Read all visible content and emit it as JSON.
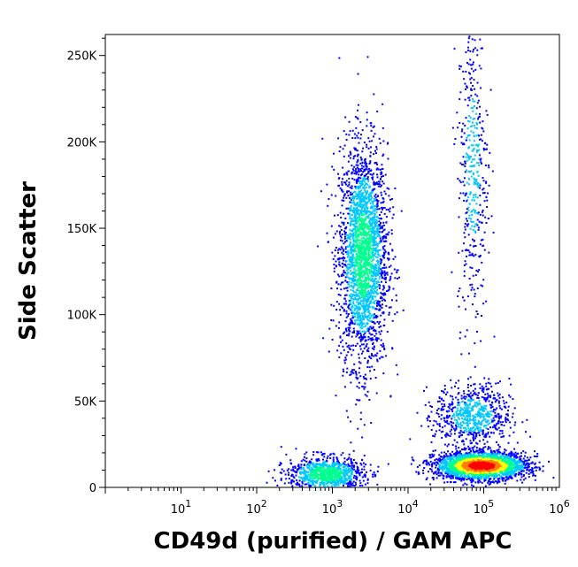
{
  "chart_data": {
    "type": "scatter",
    "title": "",
    "xlabel": "CD49d (purified) / GAM APC",
    "ylabel": "Side Scatter",
    "x_scale": "log",
    "xlim": [
      1,
      1000000
    ],
    "ylim": [
      0,
      262144
    ],
    "x_ticks": [
      {
        "value": 10,
        "base": "10",
        "exp": "1"
      },
      {
        "value": 100,
        "base": "10",
        "exp": "2"
      },
      {
        "value": 1000,
        "base": "10",
        "exp": "3"
      },
      {
        "value": 10000,
        "base": "10",
        "exp": "4"
      },
      {
        "value": 100000,
        "base": "10",
        "exp": "5"
      },
      {
        "value": 1000000,
        "base": "10",
        "exp": "6"
      }
    ],
    "y_ticks": [
      {
        "value": 0,
        "label": "0"
      },
      {
        "value": 50000,
        "label": "50K"
      },
      {
        "value": 100000,
        "label": "100K"
      },
      {
        "value": 150000,
        "label": "150K"
      },
      {
        "value": 200000,
        "label": "200K"
      },
      {
        "value": 250000,
        "label": "250K"
      }
    ],
    "density_colormap": [
      "#0000ff",
      "#00c8ff",
      "#00ff90",
      "#ffff00",
      "#ff8000",
      "#ff0000"
    ],
    "populations": [
      {
        "x_center": 2500,
        "y_center": 135000,
        "x_spread_decades": 0.16,
        "y_spread": 32000,
        "count": 2600,
        "peak_density": 0.45
      },
      {
        "x_center": 90000,
        "y_center": 13000,
        "x_spread_decades": 0.3,
        "y_spread": 4000,
        "count": 2600,
        "peak_density": 1.0
      },
      {
        "x_center": 800,
        "y_center": 8000,
        "x_spread_decades": 0.25,
        "y_spread": 5000,
        "count": 1000,
        "peak_density": 0.5
      },
      {
        "x_center": 70000,
        "y_center": 42000,
        "x_spread_decades": 0.25,
        "y_spread": 9000,
        "count": 700,
        "peak_density": 0.3
      },
      {
        "x_center": 70000,
        "y_center": 185000,
        "x_spread_decades": 0.1,
        "y_spread": 45000,
        "count": 450,
        "peak_density": 0.25
      }
    ]
  }
}
